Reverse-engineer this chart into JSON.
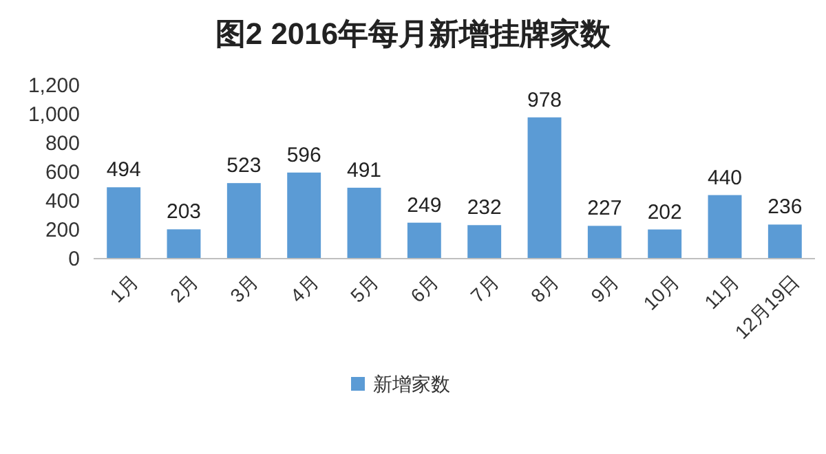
{
  "chart_data": {
    "type": "bar",
    "title": "图2 2016年每月新增挂牌家数",
    "categories": [
      "1月",
      "2月",
      "3月",
      "4月",
      "5月",
      "6月",
      "7月",
      "8月",
      "9月",
      "10月",
      "11月",
      "12月19日"
    ],
    "series": [
      {
        "name": "新增家数",
        "color": "#5b9bd5",
        "values": [
          494,
          203,
          523,
          596,
          491,
          249,
          232,
          978,
          227,
          202,
          440,
          236
        ]
      }
    ],
    "ylim": [
      0,
      1200
    ],
    "yticks": [
      0,
      200,
      400,
      600,
      800,
      {
        "value": 1000,
        "label": "1,000"
      },
      {
        "value": 1200,
        "label": "1,200"
      }
    ],
    "data_labels": true,
    "legend": "bottom",
    "grid": false
  }
}
